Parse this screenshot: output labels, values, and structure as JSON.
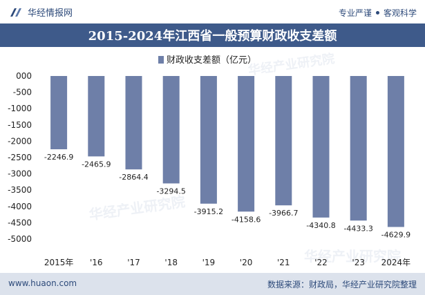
{
  "header": {
    "brand_name": "华经情报网",
    "tagline_left": "专业严谨",
    "tagline_right": "客观科学",
    "logo_icon": "huajing-logo-icon"
  },
  "footer": {
    "site": "www.huaon.com",
    "source": "数据来源：财政局，华经产业研究院整理"
  },
  "watermark": "华经产业研究院",
  "colors": {
    "bar": "#6e7fa8",
    "title_bg": "#3e5a8a",
    "footer_bg": "#dce2ec"
  },
  "chart_data": {
    "type": "bar",
    "title": "2015-2024年江西省一般预算财政收支差额",
    "categories": [
      "2015年",
      "'16",
      "'17",
      "'18",
      "'19",
      "'20",
      "'21",
      "'22",
      "'23",
      "2024年"
    ],
    "series": [
      {
        "name": "财政收支差额（亿元）",
        "values": [
          -2246.9,
          -2465.9,
          -2864.4,
          -3294.5,
          -3915.2,
          -4158.6,
          -3966.7,
          -4340.8,
          -4433.3,
          -4629.9
        ],
        "labels": [
          "-2246.9",
          "-2465.9",
          "-2864.4",
          "-3294.5",
          "-3915.2",
          "-4158.6",
          "-3966.7",
          "-4340.8",
          "-4433.3",
          "-4629.9"
        ]
      }
    ],
    "y_ticks": [
      0,
      -500,
      -1000,
      -1500,
      -2000,
      -2500,
      -3000,
      -3500,
      -4000,
      -4500,
      -5000
    ],
    "y_tick_labels": [
      "000",
      "-500",
      "-1000",
      "-1500",
      "-2000",
      "-2500",
      "-3000",
      "-3500",
      "-4000",
      "-4500",
      "-5000"
    ],
    "ylim": [
      -5000,
      0
    ],
    "grid": false,
    "legend_position": "top-center"
  }
}
